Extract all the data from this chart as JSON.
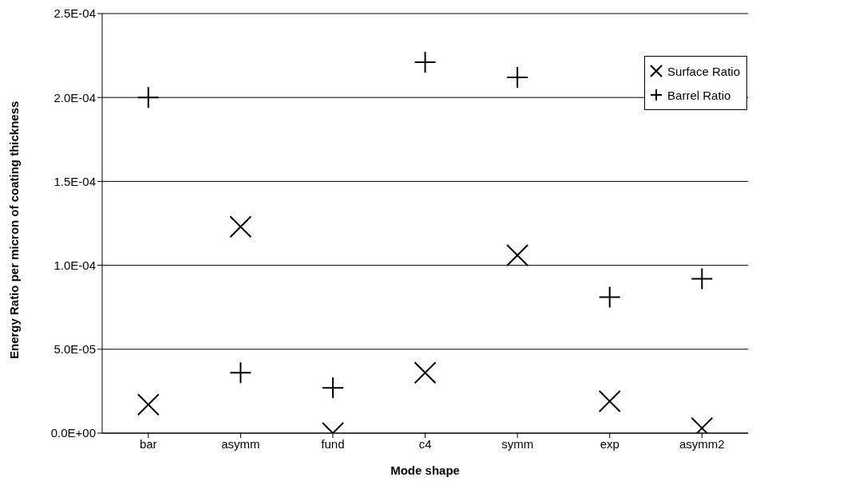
{
  "chart_data": {
    "type": "scatter",
    "xlabel": "Mode shape",
    "ylabel": "Energy Ratio per micron of coating thickness",
    "categories": [
      "bar",
      "asymm",
      "fund",
      "c4",
      "symm",
      "exp",
      "asymm2"
    ],
    "series": [
      {
        "name": "Surface Ratio",
        "color": "#000000",
        "marker": "x",
        "values": [
          1.7e-05,
          0.000123,
          0,
          3.6e-05,
          0.000106,
          1.9e-05,
          3e-06
        ]
      },
      {
        "name": "Barrel Ratio",
        "color": "#000000",
        "marker": "cross",
        "values": [
          0.0002,
          3.6e-05,
          2.7e-05,
          0.000221,
          0.000212,
          8.1e-05,
          9.2e-05
        ]
      }
    ],
    "ylim": [
      0,
      0.00025
    ],
    "yticks": [
      {
        "value": 0,
        "label": "0.0E+00"
      },
      {
        "value": 5e-05,
        "label": "5.0E-05"
      },
      {
        "value": 0.0001,
        "label": "1.0E-04"
      },
      {
        "value": 0.00015,
        "label": "1.5E-04"
      },
      {
        "value": 0.0002,
        "label": "2.0E-04"
      },
      {
        "value": 0.00025,
        "label": "2.5E-04"
      }
    ],
    "grid": "y",
    "legend": "top right"
  }
}
